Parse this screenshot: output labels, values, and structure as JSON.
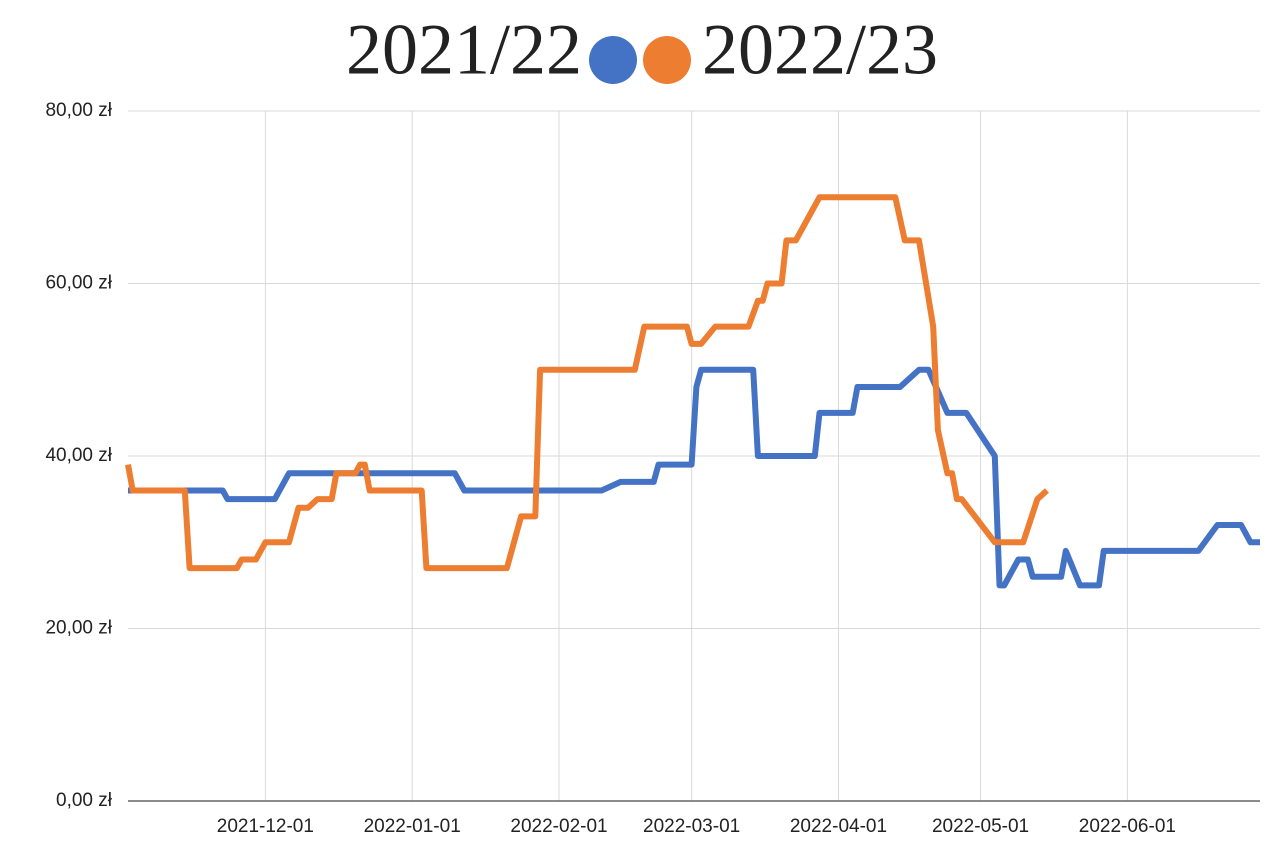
{
  "chart_data": {
    "type": "line",
    "legend_position": "top",
    "grid": true,
    "xlim": [
      "2021-11-02",
      "2022-06-29"
    ],
    "xticks": [
      "2021-12-01",
      "2022-01-01",
      "2022-02-01",
      "2022-03-01",
      "2022-04-01",
      "2022-05-01",
      "2022-06-01"
    ],
    "ylim": [
      0,
      80
    ],
    "yticks": [
      {
        "value": 0,
        "label": "0,00 zł"
      },
      {
        "value": 20,
        "label": "20,00 zł"
      },
      {
        "value": 40,
        "label": "40,00 zł"
      },
      {
        "value": 60,
        "label": "60,00 zł"
      },
      {
        "value": 80,
        "label": "80,00 zł"
      }
    ],
    "series": [
      {
        "name": "2021/22",
        "color": "#4472c4",
        "x": [
          "2021-11-02",
          "2021-11-22",
          "2021-11-23",
          "2021-12-03",
          "2021-12-06",
          "2022-01-10",
          "2022-01-12",
          "2022-02-10",
          "2022-02-14",
          "2022-02-21",
          "2022-02-22",
          "2022-03-01",
          "2022-03-02",
          "2022-03-03",
          "2022-03-14",
          "2022-03-15",
          "2022-03-27",
          "2022-03-28",
          "2022-04-04",
          "2022-04-05",
          "2022-04-14",
          "2022-04-18",
          "2022-04-20",
          "2022-04-24",
          "2022-04-28",
          "2022-05-04",
          "2022-05-05",
          "2022-05-06",
          "2022-05-09",
          "2022-05-11",
          "2022-05-12",
          "2022-05-18",
          "2022-05-19",
          "2022-05-22",
          "2022-05-26",
          "2022-05-27",
          "2022-06-16",
          "2022-06-20",
          "2022-06-25",
          "2022-06-27",
          "2022-06-29"
        ],
        "values": [
          36,
          36,
          35,
          35,
          38,
          38,
          36,
          36,
          37,
          37,
          39,
          39,
          48,
          50,
          50,
          40,
          40,
          45,
          45,
          48,
          48,
          50,
          50,
          45,
          45,
          40,
          25,
          25,
          28,
          28,
          26,
          26,
          29,
          25,
          25,
          29,
          29,
          32,
          32,
          30,
          30
        ]
      },
      {
        "name": "2022/23",
        "color": "#ed7d31",
        "x": [
          "2021-11-02",
          "2021-11-03",
          "2021-11-14",
          "2021-11-15",
          "2021-11-25",
          "2021-11-26",
          "2021-11-29",
          "2021-12-01",
          "2021-12-06",
          "2021-12-08",
          "2021-12-10",
          "2021-12-12",
          "2021-12-15",
          "2021-12-16",
          "2021-12-20",
          "2021-12-21",
          "2021-12-22",
          "2021-12-23",
          "2022-01-03",
          "2022-01-04",
          "2022-01-21",
          "2022-01-24",
          "2022-01-27",
          "2022-01-28",
          "2022-02-17",
          "2022-02-19",
          "2022-02-28",
          "2022-03-01",
          "2022-03-03",
          "2022-03-06",
          "2022-03-13",
          "2022-03-15",
          "2022-03-16",
          "2022-03-17",
          "2022-03-20",
          "2022-03-21",
          "2022-03-23",
          "2022-03-26",
          "2022-03-28",
          "2022-04-13",
          "2022-04-15",
          "2022-04-18",
          "2022-04-21",
          "2022-04-22",
          "2022-04-24",
          "2022-04-25",
          "2022-04-26",
          "2022-04-27",
          "2022-05-04",
          "2022-05-10",
          "2022-05-13",
          "2022-05-15"
        ],
        "values": [
          39,
          36,
          36,
          27,
          27,
          28,
          28,
          30,
          30,
          34,
          34,
          35,
          35,
          38,
          38,
          39,
          39,
          36,
          36,
          27,
          27,
          33,
          33,
          50,
          50,
          55,
          55,
          53,
          53,
          55,
          55,
          58,
          58,
          60,
          60,
          65,
          65,
          68,
          70,
          70,
          65,
          65,
          55,
          43,
          38,
          38,
          35,
          35,
          30,
          30,
          35,
          36
        ]
      }
    ]
  }
}
